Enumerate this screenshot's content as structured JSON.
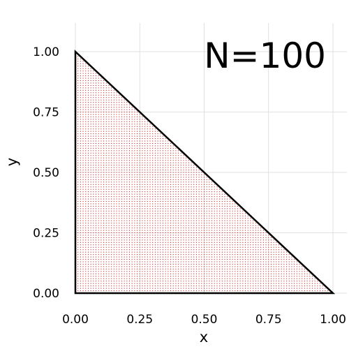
{
  "chart_data": {
    "type": "scatter",
    "title": "",
    "annotation": "N=100",
    "xlabel": "x",
    "ylabel": "y",
    "xlim": [
      0,
      1
    ],
    "ylim": [
      0,
      1
    ],
    "x_ticks": [
      "0.00",
      "0.25",
      "0.50",
      "0.75",
      "1.00"
    ],
    "y_ticks": [
      "0.00",
      "0.25",
      "0.50",
      "0.75",
      "1.00"
    ],
    "grid": true,
    "legend": "none",
    "N": 100,
    "description_of_points": "triangular grid of points on the simplex x>=0, y>=0, x+y<=1 with N=100 subdivisions",
    "series": [
      {
        "kind": "grid-points",
        "color": "#cc0000",
        "marker": "dot"
      },
      {
        "kind": "boundary",
        "color": "#000000",
        "vertices": [
          [
            0,
            0
          ],
          [
            1,
            0
          ],
          [
            0,
            1
          ]
        ]
      }
    ]
  }
}
